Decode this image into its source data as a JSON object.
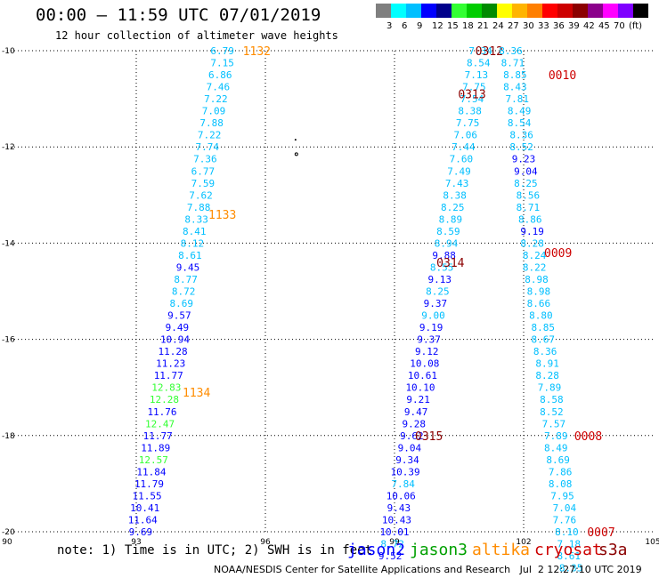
{
  "title": {
    "time_range": "00:00 – 11:59 UTC 07/01/2019",
    "subtitle": "12 hour collection of altimeter wave heights"
  },
  "color_scale": {
    "unit": "(ft)",
    "colors": [
      "#7f7f7f",
      "#00ffff",
      "#00bfff",
      "#0000ff",
      "#00008b",
      "#32ff32",
      "#00cd00",
      "#008b00",
      "#ffff00",
      "#ffb400",
      "#ff7f00",
      "#ff0000",
      "#cd0000",
      "#8b0000",
      "#8b008b",
      "#ff00ff",
      "#7f00ff",
      "#000000"
    ],
    "labels": [
      "3",
      "6",
      "9",
      "12",
      "15",
      "18",
      "21",
      "24",
      "27",
      "30",
      "33",
      "36",
      "39",
      "42",
      "45",
      "70"
    ]
  },
  "axes": {
    "x_ticks": [
      "90",
      "93",
      "96",
      "99",
      "102",
      "105"
    ],
    "x_values": [
      90,
      93,
      96,
      99,
      102,
      105
    ],
    "y_ticks": [
      "-10",
      "-12",
      "-14",
      "-16",
      "-18",
      "-20"
    ],
    "y_values": [
      -10,
      -12,
      -14,
      -16,
      -18,
      -20
    ],
    "xlim": [
      90,
      105
    ],
    "ylim": [
      -20,
      -10
    ],
    "grid": "dotted"
  },
  "tracks": [
    {
      "satellite": "altika",
      "labels": [
        {
          "text": "1132",
          "lon": 95.8,
          "lat": -10.0
        },
        {
          "text": "1133",
          "lon": 95.0,
          "lat": -13.4
        },
        {
          "text": "1134",
          "lon": 94.4,
          "lat": -17.1
        }
      ],
      "points": [
        {
          "lon": 95.0,
          "lat": -10.0,
          "v": "6.79",
          "c": "#00bfff"
        },
        {
          "lon": 95.0,
          "lat": -10.25,
          "v": "7.15",
          "c": "#00bfff"
        },
        {
          "lon": 94.95,
          "lat": -10.5,
          "v": "6.86",
          "c": "#00bfff"
        },
        {
          "lon": 94.9,
          "lat": -10.75,
          "v": "7.46",
          "c": "#00bfff"
        },
        {
          "lon": 94.85,
          "lat": -11.0,
          "v": "7.22",
          "c": "#00bfff"
        },
        {
          "lon": 94.8,
          "lat": -11.25,
          "v": "7.09",
          "c": "#00bfff"
        },
        {
          "lon": 94.75,
          "lat": -11.5,
          "v": "7.88",
          "c": "#00bfff"
        },
        {
          "lon": 94.7,
          "lat": -11.75,
          "v": "7.22",
          "c": "#00bfff"
        },
        {
          "lon": 94.65,
          "lat": -12.0,
          "v": "7.74",
          "c": "#00bfff"
        },
        {
          "lon": 94.6,
          "lat": -12.25,
          "v": "7.36",
          "c": "#00bfff"
        },
        {
          "lon": 94.55,
          "lat": -12.5,
          "v": "6.77",
          "c": "#00bfff"
        },
        {
          "lon": 94.55,
          "lat": -12.75,
          "v": "7.59",
          "c": "#00bfff"
        },
        {
          "lon": 94.5,
          "lat": -13.0,
          "v": "7.62",
          "c": "#00bfff"
        },
        {
          "lon": 94.45,
          "lat": -13.25,
          "v": "7.88",
          "c": "#00bfff"
        },
        {
          "lon": 94.4,
          "lat": -13.5,
          "v": "8.33",
          "c": "#00bfff"
        },
        {
          "lon": 94.35,
          "lat": -13.75,
          "v": "8.41",
          "c": "#00bfff"
        },
        {
          "lon": 94.3,
          "lat": -14.0,
          "v": "8.12",
          "c": "#00bfff"
        },
        {
          "lon": 94.25,
          "lat": -14.25,
          "v": "8.61",
          "c": "#00bfff"
        },
        {
          "lon": 94.2,
          "lat": -14.5,
          "v": "9.45",
          "c": "#0000ff"
        },
        {
          "lon": 94.15,
          "lat": -14.75,
          "v": "8.77",
          "c": "#00bfff"
        },
        {
          "lon": 94.1,
          "lat": -15.0,
          "v": "8.72",
          "c": "#00bfff"
        },
        {
          "lon": 94.05,
          "lat": -15.25,
          "v": "8.69",
          "c": "#00bfff"
        },
        {
          "lon": 94.0,
          "lat": -15.5,
          "v": "9.57",
          "c": "#0000ff"
        },
        {
          "lon": 93.95,
          "lat": -15.75,
          "v": "9.49",
          "c": "#0000ff"
        },
        {
          "lon": 93.9,
          "lat": -16.0,
          "v": "10.94",
          "c": "#0000ff"
        },
        {
          "lon": 93.85,
          "lat": -16.25,
          "v": "11.28",
          "c": "#0000ff"
        },
        {
          "lon": 93.8,
          "lat": -16.5,
          "v": "11.23",
          "c": "#0000ff"
        },
        {
          "lon": 93.75,
          "lat": -16.75,
          "v": "11.77",
          "c": "#0000ff"
        },
        {
          "lon": 93.7,
          "lat": -17.0,
          "v": "12.83",
          "c": "#32ff32"
        },
        {
          "lon": 93.65,
          "lat": -17.25,
          "v": "12.28",
          "c": "#32ff32"
        },
        {
          "lon": 93.6,
          "lat": -17.5,
          "v": "11.76",
          "c": "#0000ff"
        },
        {
          "lon": 93.55,
          "lat": -17.75,
          "v": "12.47",
          "c": "#32ff32"
        },
        {
          "lon": 93.5,
          "lat": -18.0,
          "v": "11.77",
          "c": "#0000ff"
        },
        {
          "lon": 93.45,
          "lat": -18.25,
          "v": "11.89",
          "c": "#0000ff"
        },
        {
          "lon": 93.4,
          "lat": -18.5,
          "v": "12.57",
          "c": "#32ff32"
        },
        {
          "lon": 93.35,
          "lat": -18.75,
          "v": "11.84",
          "c": "#0000ff"
        },
        {
          "lon": 93.3,
          "lat": -19.0,
          "v": "11.79",
          "c": "#0000ff"
        },
        {
          "lon": 93.25,
          "lat": -19.25,
          "v": "11.55",
          "c": "#0000ff"
        },
        {
          "lon": 93.2,
          "lat": -19.5,
          "v": "10.41",
          "c": "#0000ff"
        },
        {
          "lon": 93.15,
          "lat": -19.75,
          "v": "11.64",
          "c": "#0000ff"
        },
        {
          "lon": 93.1,
          "lat": -20.0,
          "v": "9.69",
          "c": "#0000ff"
        }
      ]
    },
    {
      "satellite": "s3a",
      "labels": [
        {
          "text": "0312",
          "lon": 101.2,
          "lat": -10.0
        },
        {
          "text": "0313",
          "lon": 100.8,
          "lat": -10.9
        },
        {
          "text": "0314",
          "lon": 100.3,
          "lat": -14.4
        },
        {
          "text": "0315",
          "lon": 99.8,
          "lat": -18.0
        }
      ],
      "points": [
        {
          "lon": 101.0,
          "lat": -10.0,
          "v": "7.34",
          "c": "#00bfff"
        },
        {
          "lon": 100.95,
          "lat": -10.25,
          "v": "8.54",
          "c": "#00bfff"
        },
        {
          "lon": 100.9,
          "lat": -10.5,
          "v": "7.13",
          "c": "#00bfff"
        },
        {
          "lon": 100.85,
          "lat": -10.75,
          "v": "7.75",
          "c": "#00bfff"
        },
        {
          "lon": 100.8,
          "lat": -11.0,
          "v": "7.54",
          "c": "#00bfff"
        },
        {
          "lon": 100.75,
          "lat": -11.25,
          "v": "8.38",
          "c": "#00bfff"
        },
        {
          "lon": 100.7,
          "lat": -11.5,
          "v": "7.75",
          "c": "#00bfff"
        },
        {
          "lon": 100.65,
          "lat": -11.75,
          "v": "7.06",
          "c": "#00bfff"
        },
        {
          "lon": 100.6,
          "lat": -12.0,
          "v": "7.44",
          "c": "#00bfff"
        },
        {
          "lon": 100.55,
          "lat": -12.25,
          "v": "7.60",
          "c": "#00bfff"
        },
        {
          "lon": 100.5,
          "lat": -12.5,
          "v": "7.49",
          "c": "#00bfff"
        },
        {
          "lon": 100.45,
          "lat": -12.75,
          "v": "7.43",
          "c": "#00bfff"
        },
        {
          "lon": 100.4,
          "lat": -13.0,
          "v": "8.38",
          "c": "#00bfff"
        },
        {
          "lon": 100.35,
          "lat": -13.25,
          "v": "8.25",
          "c": "#00bfff"
        },
        {
          "lon": 100.3,
          "lat": -13.5,
          "v": "8.89",
          "c": "#00bfff"
        },
        {
          "lon": 100.25,
          "lat": -13.75,
          "v": "8.59",
          "c": "#00bfff"
        },
        {
          "lon": 100.2,
          "lat": -14.0,
          "v": "8.94",
          "c": "#00bfff"
        },
        {
          "lon": 100.15,
          "lat": -14.25,
          "v": "9.88",
          "c": "#0000ff"
        },
        {
          "lon": 100.1,
          "lat": -14.5,
          "v": "8.55",
          "c": "#00bfff"
        },
        {
          "lon": 100.05,
          "lat": -14.75,
          "v": "9.13",
          "c": "#0000ff"
        },
        {
          "lon": 100.0,
          "lat": -15.0,
          "v": "8.25",
          "c": "#00bfff"
        },
        {
          "lon": 99.95,
          "lat": -15.25,
          "v": "9.37",
          "c": "#0000ff"
        },
        {
          "lon": 99.9,
          "lat": -15.5,
          "v": "9.00",
          "c": "#00bfff"
        },
        {
          "lon": 99.85,
          "lat": -15.75,
          "v": "9.19",
          "c": "#0000ff"
        },
        {
          "lon": 99.8,
          "lat": -16.0,
          "v": "9.37",
          "c": "#0000ff"
        },
        {
          "lon": 99.75,
          "lat": -16.25,
          "v": "9.12",
          "c": "#0000ff"
        },
        {
          "lon": 99.7,
          "lat": -16.5,
          "v": "10.08",
          "c": "#0000ff"
        },
        {
          "lon": 99.65,
          "lat": -16.75,
          "v": "10.61",
          "c": "#0000ff"
        },
        {
          "lon": 99.6,
          "lat": -17.0,
          "v": "10.10",
          "c": "#0000ff"
        },
        {
          "lon": 99.55,
          "lat": -17.25,
          "v": "9.21",
          "c": "#0000ff"
        },
        {
          "lon": 99.5,
          "lat": -17.5,
          "v": "9.47",
          "c": "#0000ff"
        },
        {
          "lon": 99.45,
          "lat": -17.75,
          "v": "9.28",
          "c": "#0000ff"
        },
        {
          "lon": 99.4,
          "lat": -18.0,
          "v": "9.62",
          "c": "#0000ff"
        },
        {
          "lon": 99.35,
          "lat": -18.25,
          "v": "9.04",
          "c": "#0000ff"
        },
        {
          "lon": 99.3,
          "lat": -18.5,
          "v": "9.34",
          "c": "#0000ff"
        },
        {
          "lon": 99.25,
          "lat": -18.75,
          "v": "10.39",
          "c": "#0000ff"
        },
        {
          "lon": 99.2,
          "lat": -19.0,
          "v": "7.84",
          "c": "#00bfff"
        },
        {
          "lon": 99.15,
          "lat": -19.25,
          "v": "10.06",
          "c": "#0000ff"
        },
        {
          "lon": 99.1,
          "lat": -19.5,
          "v": "9.43",
          "c": "#0000ff"
        },
        {
          "lon": 99.05,
          "lat": -19.75,
          "v": "10.43",
          "c": "#0000ff"
        },
        {
          "lon": 99.0,
          "lat": -20.0,
          "v": "10.01",
          "c": "#0000ff"
        },
        {
          "lon": 98.95,
          "lat": -20.25,
          "v": "8.72",
          "c": "#00bfff"
        },
        {
          "lon": 98.9,
          "lat": -20.5,
          "v": "9.52",
          "c": "#0000ff"
        }
      ]
    },
    {
      "satellite": "s3a",
      "labels": [
        {
          "text": "0010",
          "lon": 102.9,
          "lat": -10.5
        },
        {
          "text": "0009",
          "lon": 102.8,
          "lat": -14.2
        },
        {
          "text": "0008",
          "lon": 103.5,
          "lat": -18.0
        },
        {
          "text": "0007",
          "lon": 103.8,
          "lat": -20.0
        }
      ],
      "points": [
        {
          "lon": 101.7,
          "lat": -10.0,
          "v": "8.36",
          "c": "#00bfff"
        },
        {
          "lon": 101.75,
          "lat": -10.25,
          "v": "8.71",
          "c": "#00bfff"
        },
        {
          "lon": 101.8,
          "lat": -10.5,
          "v": "8.85",
          "c": "#00bfff"
        },
        {
          "lon": 101.8,
          "lat": -10.75,
          "v": "8.43",
          "c": "#00bfff"
        },
        {
          "lon": 101.85,
          "lat": -11.0,
          "v": "7.81",
          "c": "#00bfff"
        },
        {
          "lon": 101.9,
          "lat": -11.25,
          "v": "8.49",
          "c": "#00bfff"
        },
        {
          "lon": 101.9,
          "lat": -11.5,
          "v": "8.54",
          "c": "#00bfff"
        },
        {
          "lon": 101.95,
          "lat": -11.75,
          "v": "8.36",
          "c": "#00bfff"
        },
        {
          "lon": 101.95,
          "lat": -12.0,
          "v": "8.52",
          "c": "#00bfff"
        },
        {
          "lon": 102.0,
          "lat": -12.25,
          "v": "9.23",
          "c": "#0000ff"
        },
        {
          "lon": 102.05,
          "lat": -12.5,
          "v": "9.04",
          "c": "#0000ff"
        },
        {
          "lon": 102.05,
          "lat": -12.75,
          "v": "8.25",
          "c": "#00bfff"
        },
        {
          "lon": 102.1,
          "lat": -13.0,
          "v": "8.56",
          "c": "#00bfff"
        },
        {
          "lon": 102.1,
          "lat": -13.25,
          "v": "8.71",
          "c": "#00bfff"
        },
        {
          "lon": 102.15,
          "lat": -13.5,
          "v": "8.86",
          "c": "#00bfff"
        },
        {
          "lon": 102.2,
          "lat": -13.75,
          "v": "9.19",
          "c": "#0000ff"
        },
        {
          "lon": 102.2,
          "lat": -14.0,
          "v": "8.28",
          "c": "#00bfff"
        },
        {
          "lon": 102.25,
          "lat": -14.25,
          "v": "8.24",
          "c": "#00bfff"
        },
        {
          "lon": 102.25,
          "lat": -14.5,
          "v": "8.22",
          "c": "#00bfff"
        },
        {
          "lon": 102.3,
          "lat": -14.75,
          "v": "8.98",
          "c": "#00bfff"
        },
        {
          "lon": 102.35,
          "lat": -15.0,
          "v": "8.98",
          "c": "#00bfff"
        },
        {
          "lon": 102.35,
          "lat": -15.25,
          "v": "8.66",
          "c": "#00bfff"
        },
        {
          "lon": 102.4,
          "lat": -15.5,
          "v": "8.80",
          "c": "#00bfff"
        },
        {
          "lon": 102.45,
          "lat": -15.75,
          "v": "8.85",
          "c": "#00bfff"
        },
        {
          "lon": 102.45,
          "lat": -16.0,
          "v": "8.67",
          "c": "#00bfff"
        },
        {
          "lon": 102.5,
          "lat": -16.25,
          "v": "8.36",
          "c": "#00bfff"
        },
        {
          "lon": 102.55,
          "lat": -16.5,
          "v": "8.91",
          "c": "#00bfff"
        },
        {
          "lon": 102.55,
          "lat": -16.75,
          "v": "8.28",
          "c": "#00bfff"
        },
        {
          "lon": 102.6,
          "lat": -17.0,
          "v": "7.89",
          "c": "#00bfff"
        },
        {
          "lon": 102.65,
          "lat": -17.25,
          "v": "8.58",
          "c": "#00bfff"
        },
        {
          "lon": 102.65,
          "lat": -17.5,
          "v": "8.52",
          "c": "#00bfff"
        },
        {
          "lon": 102.7,
          "lat": -17.75,
          "v": "7.57",
          "c": "#00bfff"
        },
        {
          "lon": 102.75,
          "lat": -18.0,
          "v": "7.89",
          "c": "#00bfff"
        },
        {
          "lon": 102.75,
          "lat": -18.25,
          "v": "8.49",
          "c": "#00bfff"
        },
        {
          "lon": 102.8,
          "lat": -18.5,
          "v": "8.69",
          "c": "#00bfff"
        },
        {
          "lon": 102.85,
          "lat": -18.75,
          "v": "7.86",
          "c": "#00bfff"
        },
        {
          "lon": 102.85,
          "lat": -19.0,
          "v": "8.08",
          "c": "#00bfff"
        },
        {
          "lon": 102.9,
          "lat": -19.25,
          "v": "7.95",
          "c": "#00bfff"
        },
        {
          "lon": 102.95,
          "lat": -19.5,
          "v": "7.04",
          "c": "#00bfff"
        },
        {
          "lon": 102.95,
          "lat": -19.75,
          "v": "7.76",
          "c": "#00bfff"
        },
        {
          "lon": 103.0,
          "lat": -20.0,
          "v": "8.10",
          "c": "#00bfff"
        },
        {
          "lon": 103.05,
          "lat": -20.25,
          "v": "7.18",
          "c": "#00bfff"
        },
        {
          "lon": 103.05,
          "lat": -20.5,
          "v": "8.61",
          "c": "#00bfff"
        },
        {
          "lon": 103.1,
          "lat": -20.75,
          "v": "8.35",
          "c": "#00bfff"
        }
      ]
    }
  ],
  "pass_label_colors": {
    "altika": "#ff8c00",
    "s3a": "#8b0000",
    "s3a_recent": "#cd0000"
  },
  "note": "note: 1) Time is in UTC; 2) SWH is in feet",
  "legend": [
    {
      "name": "jason2",
      "color": "#0000ff"
    },
    {
      "name": "jason3",
      "color": "#00a000"
    },
    {
      "name": "altika",
      "color": "#ff8c00"
    },
    {
      "name": "cryosat",
      "color": "#cd0000"
    },
    {
      "name": "s3a",
      "color": "#8b0000"
    }
  ],
  "credit": "NOAA/NESDIS Center for Satellite Applications and Research   Jul  2 12:27:10 UTC 2019"
}
